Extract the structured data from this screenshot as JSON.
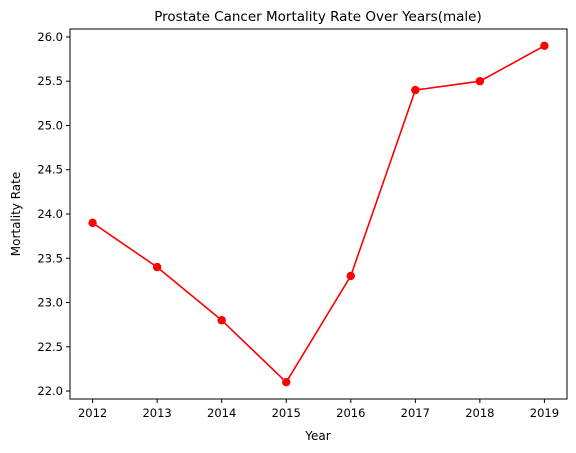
{
  "chart_data": {
    "type": "line",
    "title": "Prostate Cancer Mortality Rate Over Years(male)",
    "xlabel": "Year",
    "ylabel": "Mortality Rate",
    "x": [
      2012,
      2013,
      2014,
      2015,
      2016,
      2017,
      2018,
      2019
    ],
    "y": [
      23.9,
      23.4,
      22.8,
      22.1,
      23.3,
      25.4,
      25.5,
      25.9
    ],
    "xlim": [
      2011.65,
      2019.35
    ],
    "ylim": [
      21.91,
      26.09
    ],
    "xticks": [
      "2012",
      "2013",
      "2014",
      "2015",
      "2016",
      "2017",
      "2018",
      "2019"
    ],
    "yticks": [
      "22.0",
      "22.5",
      "23.0",
      "23.5",
      "24.0",
      "24.5",
      "25.0",
      "25.5",
      "26.0"
    ],
    "grid": false,
    "line_color": "#ff0000",
    "marker": "circle"
  }
}
